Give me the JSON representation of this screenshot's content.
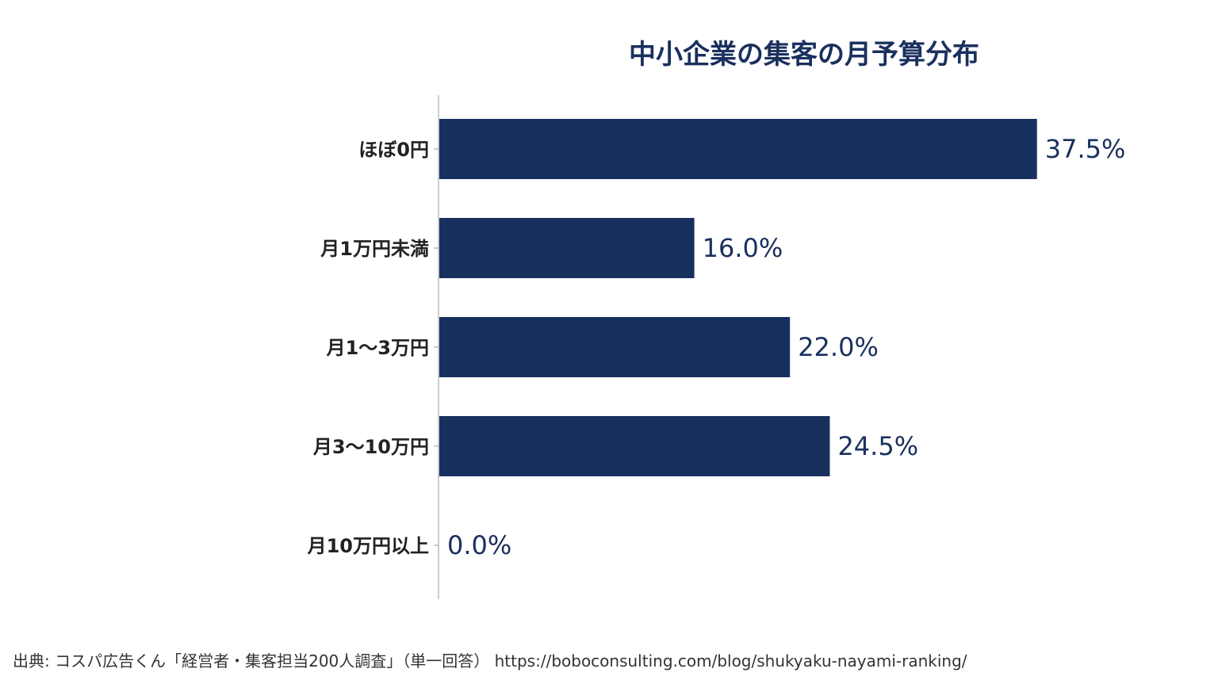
{
  "chart_data": {
    "type": "bar",
    "orientation": "horizontal",
    "title": "中小企業の集客の月予算分布",
    "categories": [
      "ほぼ0円",
      "月1万円未満",
      "月1〜3万円",
      "月3〜10万円",
      "月10万円以上"
    ],
    "values": [
      37.5,
      16.0,
      22.0,
      24.5,
      0.0
    ],
    "value_labels": [
      "37.5%",
      "16.0%",
      "22.0%",
      "24.5%",
      "0.0%"
    ],
    "xlim": [
      0,
      40
    ],
    "grid": false,
    "bar_color": "#17305e"
  },
  "source": "出典: コスパ広告くん「経営者・集客担当200人調査」（単一回答） https://boboconsulting.com/blog/shukyaku-nayami-ranking/"
}
